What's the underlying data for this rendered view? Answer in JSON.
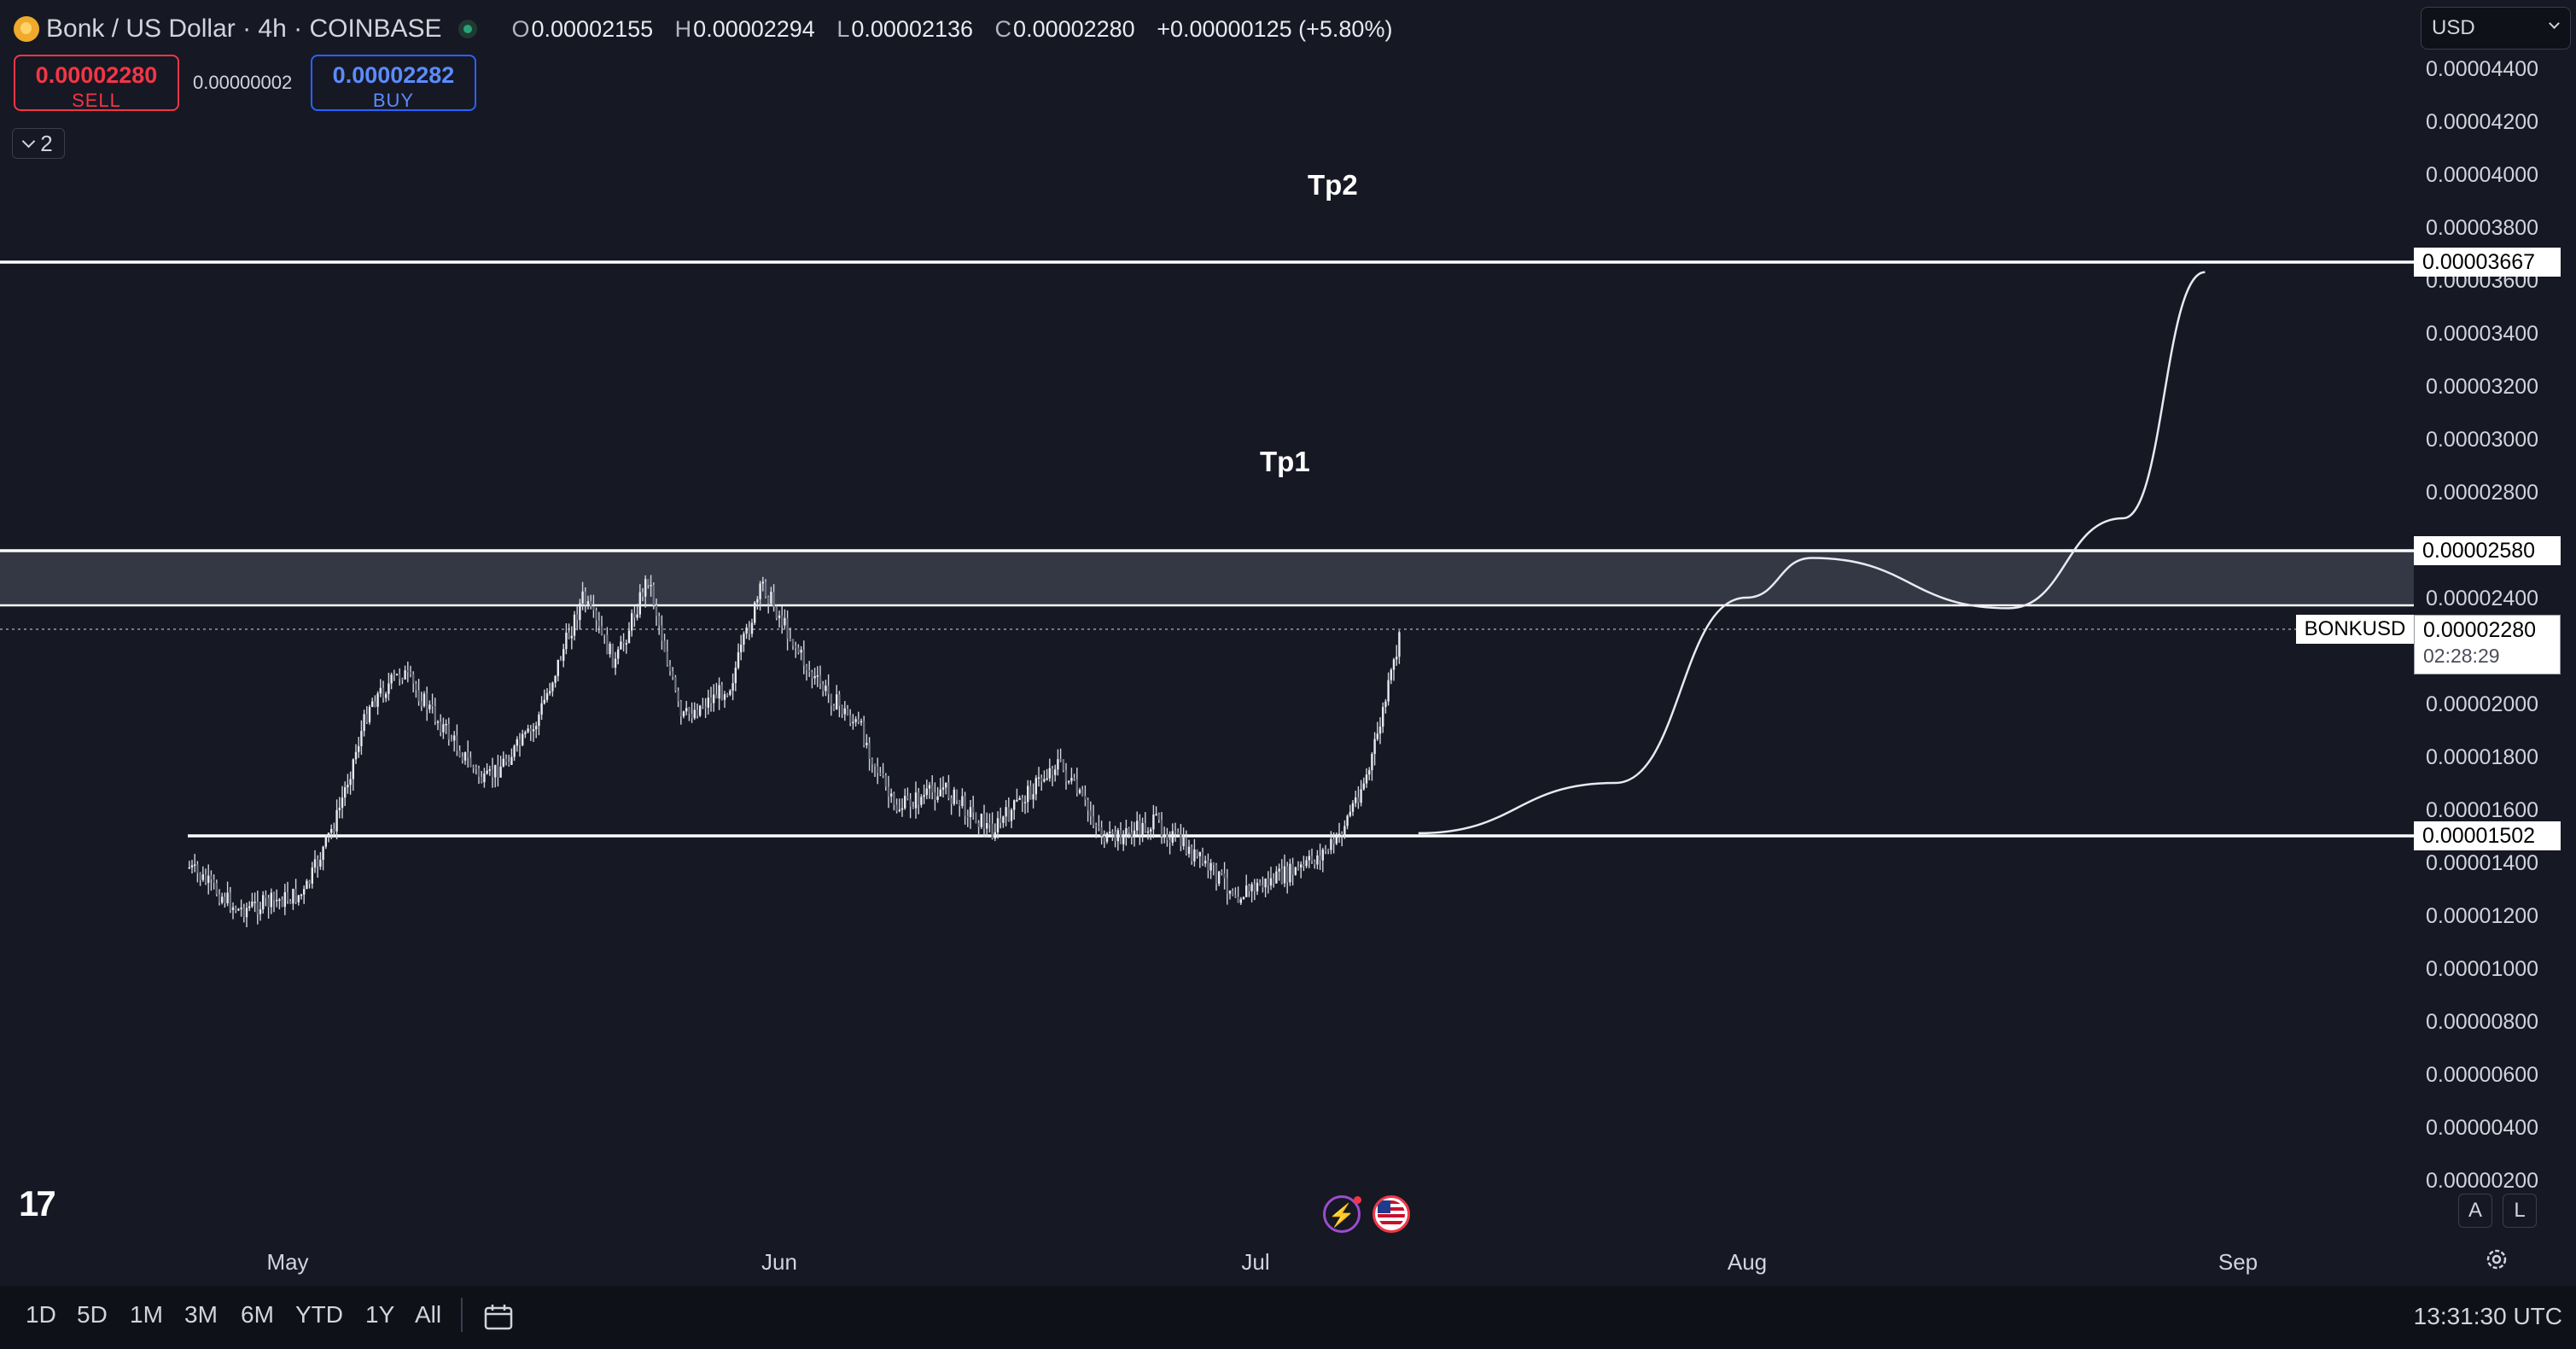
{
  "header": {
    "title": "Bonk / US Dollar · 4h · COINBASE",
    "ohlc": [
      {
        "k": "O",
        "v": "0.00002155"
      },
      {
        "k": "H",
        "v": "0.00002294"
      },
      {
        "k": "L",
        "v": "0.00002136"
      },
      {
        "k": "C",
        "v": "0.00002280"
      }
    ],
    "change": "+0.00000125 (+5.80%)"
  },
  "trade": {
    "sell_price": "0.00002280",
    "sell_label": "SELL",
    "spread": "0.00000002",
    "buy_price": "0.00002282",
    "buy_label": "BUY"
  },
  "layers_count": "2",
  "currency": "USD",
  "annotations": {
    "tp1": "Tp1",
    "tp2": "Tp2"
  },
  "price_tags": {
    "level_top": "0.00003667",
    "level_mid": "0.00002580",
    "level_low": "0.00001502"
  },
  "last_price": {
    "symbol": "BONKUSD",
    "price": "0.00002280",
    "countdown": "02:28:29"
  },
  "bottom": {
    "ranges": [
      "1D",
      "5D",
      "1M",
      "3M",
      "6M",
      "YTD",
      "1Y",
      "All"
    ],
    "clock": "13:31:30 UTC"
  },
  "buttons": {
    "auto": "A",
    "log": "L"
  },
  "logo": "17",
  "colors": {
    "background": "#161824",
    "candle": "#d1d4dc",
    "levels": "#ffffff",
    "sell": "#f23645",
    "buy": "#2962ff"
  },
  "chart_data": {
    "type": "candlestick",
    "symbol": "BONKUSD",
    "interval": "4h",
    "y_axis_ticks": [
      "0.00004400",
      "0.00004200",
      "0.00004000",
      "0.00003800",
      "0.00003600",
      "0.00003400",
      "0.00003200",
      "0.00003000",
      "0.00002800",
      "0.00002600",
      "0.00002400",
      "0.00002200",
      "0.00002000",
      "0.00001800",
      "0.00001600",
      "0.00001400",
      "0.00001200",
      "0.00001000",
      "0.00000800",
      "0.00000600",
      "0.00000400",
      "0.00000200"
    ],
    "x_axis_ticks": [
      "May",
      "Jun",
      "Jul",
      "Aug",
      "Sep"
    ],
    "ylim": [
      2e-06,
      4.4e-05
    ],
    "horizontal_levels": [
      3.667e-05,
      2.58e-05,
      2.37e-05,
      1.502e-05
    ],
    "zone": [
      2.37e-05,
      2.58e-05
    ],
    "approx_close_path": [
      {
        "x": "Apr 24",
        "y": 1.38e-05
      },
      {
        "x": "Apr 27",
        "y": 1.22e-05
      },
      {
        "x": "May 1",
        "y": 1.28e-05
      },
      {
        "x": "May 3",
        "y": 1.57e-05
      },
      {
        "x": "May 5",
        "y": 2e-05
      },
      {
        "x": "May 7",
        "y": 2.12e-05
      },
      {
        "x": "May 12",
        "y": 1.7e-05
      },
      {
        "x": "May 15",
        "y": 1.9e-05
      },
      {
        "x": "May 18",
        "y": 2.4e-05
      },
      {
        "x": "May 20",
        "y": 2.15e-05
      },
      {
        "x": "May 22",
        "y": 2.48e-05
      },
      {
        "x": "May 24",
        "y": 1.94e-05
      },
      {
        "x": "May 27",
        "y": 2.07e-05
      },
      {
        "x": "May 29",
        "y": 2.45e-05
      },
      {
        "x": "Jun 1",
        "y": 2.1e-05
      },
      {
        "x": "Jun 4",
        "y": 1.9e-05
      },
      {
        "x": "Jun 6",
        "y": 1.6e-05
      },
      {
        "x": "Jun 9",
        "y": 1.68e-05
      },
      {
        "x": "Jun 12",
        "y": 1.52e-05
      },
      {
        "x": "Jun 16",
        "y": 1.78e-05
      },
      {
        "x": "Jun 19",
        "y": 1.48e-05
      },
      {
        "x": "Jun 22",
        "y": 1.55e-05
      },
      {
        "x": "Jun 27",
        "y": 1.28e-05
      },
      {
        "x": "Jul 1",
        "y": 1.38e-05
      },
      {
        "x": "Jul 3",
        "y": 1.48e-05
      },
      {
        "x": "Jul 5",
        "y": 1.75e-05
      },
      {
        "x": "Jul 7",
        "y": 2.28e-05
      }
    ],
    "projection_path": [
      {
        "x": "Jul 8",
        "y": 1.51e-05
      },
      {
        "x": "Jul 20",
        "y": 1.7e-05
      },
      {
        "x": "Jul 28",
        "y": 2.4e-05
      },
      {
        "x": "Aug 1",
        "y": 2.55e-05
      },
      {
        "x": "Aug 13",
        "y": 2.36e-05
      },
      {
        "x": "Aug 20",
        "y": 2.7e-05
      },
      {
        "x": "Aug 25",
        "y": 3.63e-05
      }
    ]
  }
}
